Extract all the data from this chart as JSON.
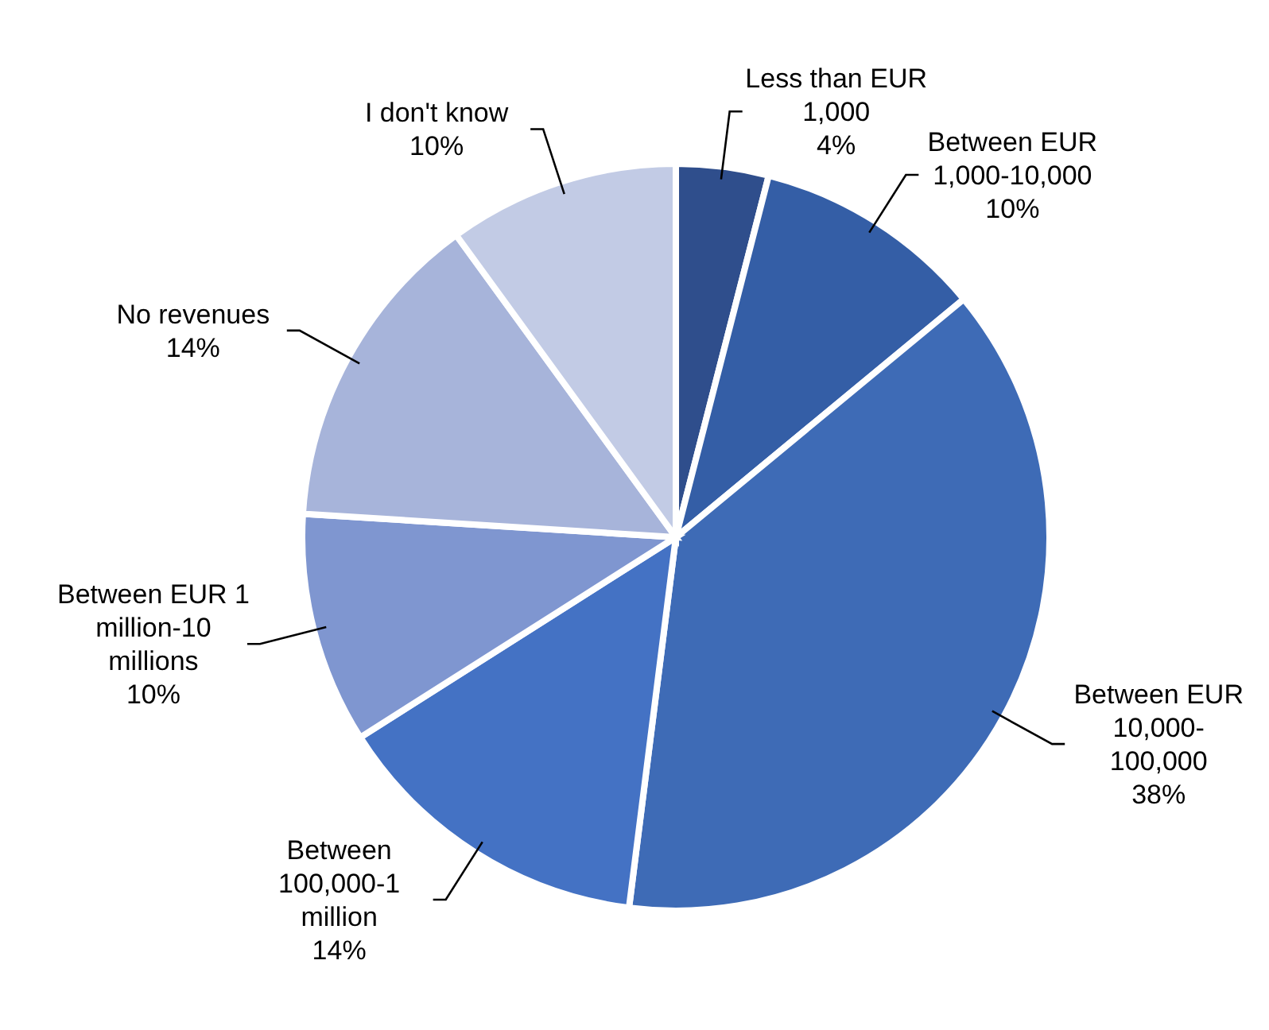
{
  "chart_data": {
    "type": "pie",
    "categories": [
      "Less than EUR 1,000",
      "Between EUR 1,000-10,000",
      "Between EUR 10,000-100,000",
      "Between 100,000-1 million",
      "Between EUR 1 million-10 millions",
      "No revenues",
      "I don't know"
    ],
    "values": [
      4,
      10,
      38,
      14,
      10,
      14,
      10
    ],
    "value_labels": [
      "4%",
      "10%",
      "38%",
      "14%",
      "10%",
      "14%",
      "10%"
    ],
    "colors": [
      "#2f4e8c",
      "#345ea6",
      "#3e6bb6",
      "#4472c4",
      "#7f96d0",
      "#a7b4da",
      "#c2cbe5"
    ],
    "legend": false
  }
}
